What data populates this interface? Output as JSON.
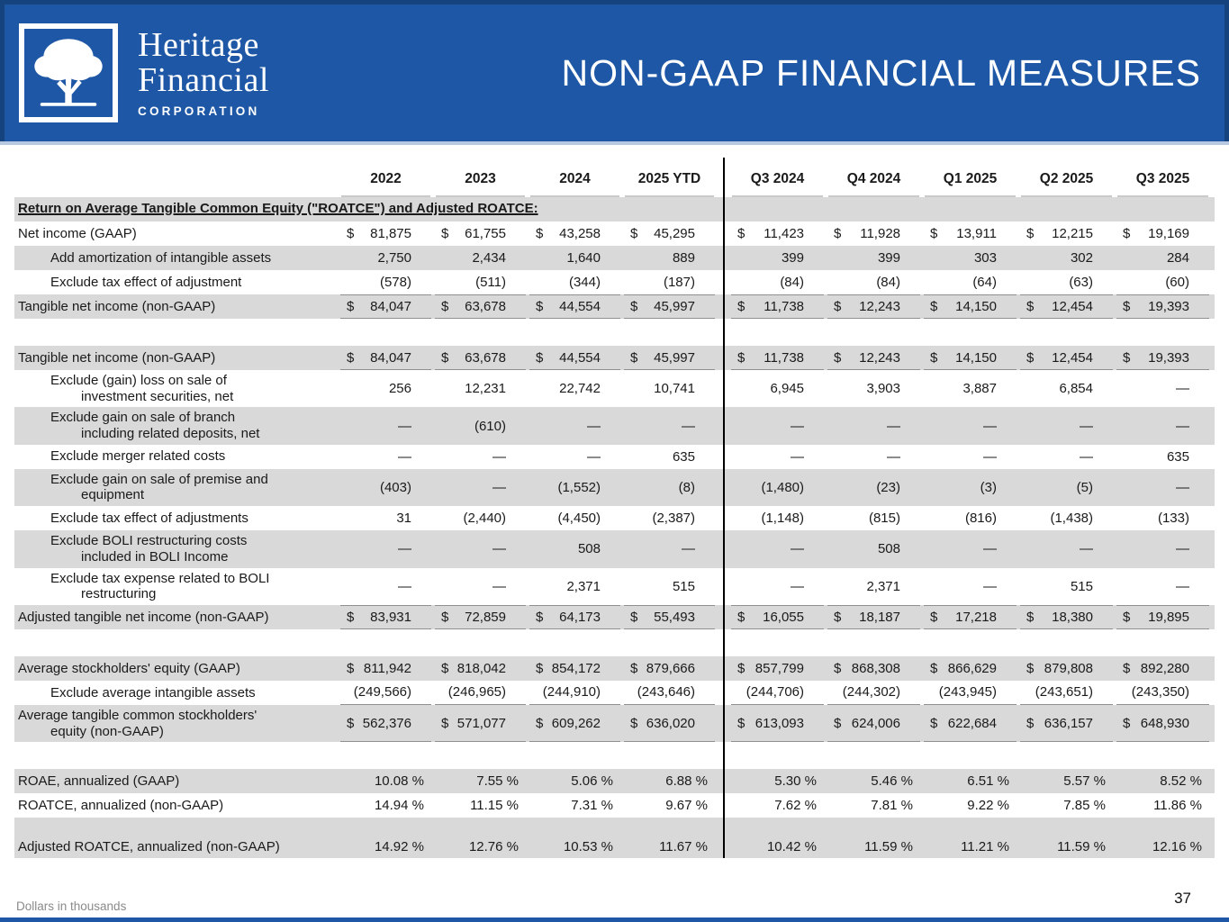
{
  "header": {
    "logo_line1": "Heritage",
    "logo_line2": "Financial",
    "logo_line3": "CORPORATION",
    "logo_icon": "tree-icon",
    "title": "NON-GAAP FINANCIAL MEASURES"
  },
  "colors": {
    "banner_blue": "#1d57a5",
    "banner_border_blue": "#14437e",
    "row_shade_gray": "#d9d9d9",
    "rule_gray": "#8f8f8f"
  },
  "table": {
    "columns": [
      "2022",
      "2023",
      "2024",
      "2025 YTD",
      "Q3 2024",
      "Q4 2024",
      "Q1 2025",
      "Q2 2025",
      "Q3 2025"
    ],
    "rows": [
      {
        "type": "section",
        "shaded": true,
        "label": "Return on Average Tangible Common Equity (\"ROATCE\") and Adjusted ROATCE:"
      },
      {
        "type": "data",
        "label": "Net income (GAAP)",
        "indent": 0,
        "dollar": true,
        "values": [
          "81,875",
          "61,755",
          "43,258",
          "45,295",
          "11,423",
          "11,928",
          "13,911",
          "12,215",
          "19,169"
        ]
      },
      {
        "type": "data",
        "label": "Add amortization of intangible assets",
        "indent": 1,
        "shaded": true,
        "values": [
          "2,750",
          "2,434",
          "1,640",
          "889",
          "399",
          "399",
          "303",
          "302",
          "284"
        ]
      },
      {
        "type": "data",
        "label": "Exclude tax effect of adjustment",
        "indent": 1,
        "values": [
          "(578)",
          "(511)",
          "(344)",
          "(187)",
          "(84)",
          "(84)",
          "(64)",
          "(63)",
          "(60)"
        ]
      },
      {
        "type": "data",
        "label": "Tangible net income (non-GAAP)",
        "indent": 0,
        "shaded": true,
        "dollar": true,
        "rule": "both",
        "values": [
          "84,047",
          "63,678",
          "44,554",
          "45,997",
          "11,738",
          "12,243",
          "14,150",
          "12,454",
          "19,393"
        ]
      },
      {
        "type": "spacer"
      },
      {
        "type": "data",
        "label": "Tangible net income (non-GAAP)",
        "indent": 0,
        "shaded": true,
        "dollar": true,
        "rule": "bottom",
        "values": [
          "84,047",
          "63,678",
          "44,554",
          "45,997",
          "11,738",
          "12,243",
          "14,150",
          "12,454",
          "19,393"
        ]
      },
      {
        "type": "data",
        "label": "Exclude (gain) loss on sale of",
        "label2": "investment securities, net",
        "indent": 1,
        "values": [
          "256",
          "12,231",
          "22,742",
          "10,741",
          "6,945",
          "3,903",
          "3,887",
          "6,854",
          "—"
        ]
      },
      {
        "type": "data",
        "label": "Exclude gain on sale of branch",
        "label2": "including related deposits, net",
        "indent": 1,
        "shaded": true,
        "values": [
          "—",
          "(610)",
          "—",
          "—",
          "—",
          "—",
          "—",
          "—",
          "—"
        ]
      },
      {
        "type": "data",
        "label": "Exclude merger related costs",
        "indent": 1,
        "values": [
          "—",
          "—",
          "—",
          "635",
          "—",
          "—",
          "—",
          "—",
          "635"
        ]
      },
      {
        "type": "data",
        "label": "Exclude gain on sale of premise and",
        "label2": "equipment",
        "indent": 1,
        "shaded": true,
        "values": [
          "(403)",
          "—",
          "(1,552)",
          "(8)",
          "(1,480)",
          "(23)",
          "(3)",
          "(5)",
          "—"
        ]
      },
      {
        "type": "data",
        "label": "Exclude tax effect of adjustments",
        "indent": 1,
        "values": [
          "31",
          "(2,440)",
          "(4,450)",
          "(2,387)",
          "(1,148)",
          "(815)",
          "(816)",
          "(1,438)",
          "(133)"
        ]
      },
      {
        "type": "data",
        "label": "Exclude BOLI restructuring costs",
        "label2": "included in BOLI Income",
        "indent": 1,
        "shaded": true,
        "values": [
          "—",
          "—",
          "508",
          "—",
          "—",
          "508",
          "—",
          "—",
          "—"
        ]
      },
      {
        "type": "data",
        "label": "Exclude tax expense related to BOLI",
        "label2": "restructuring",
        "indent": 1,
        "values": [
          "—",
          "—",
          "2,371",
          "515",
          "—",
          "2,371",
          "—",
          "515",
          "—"
        ]
      },
      {
        "type": "data",
        "label": "Adjusted tangible net income (non-GAAP)",
        "indent": 0,
        "shaded": true,
        "dollar": true,
        "rule": "both",
        "values": [
          "83,931",
          "72,859",
          "64,173",
          "55,493",
          "16,055",
          "18,187",
          "17,218",
          "18,380",
          "19,895"
        ]
      },
      {
        "type": "spacer"
      },
      {
        "type": "data",
        "label": "Average stockholders' equity (GAAP)",
        "indent": 0,
        "shaded": true,
        "dollar": true,
        "values": [
          "811,942",
          "818,042",
          "854,172",
          "879,666",
          "857,799",
          "868,308",
          "866,629",
          "879,808",
          "892,280"
        ]
      },
      {
        "type": "data",
        "label": "Exclude average intangible assets",
        "indent": 1,
        "rule": "bottom",
        "values": [
          "(249,566)",
          "(246,965)",
          "(244,910)",
          "(243,646)",
          "(244,706)",
          "(244,302)",
          "(243,945)",
          "(243,651)",
          "(243,350)"
        ]
      },
      {
        "type": "data",
        "label": "Average tangible common stockholders'",
        "label2": "equity (non-GAAP)",
        "indent": 0,
        "shaded": true,
        "dollar": true,
        "rule": "bottom",
        "values": [
          "562,376",
          "571,077",
          "609,262",
          "636,020",
          "613,093",
          "624,006",
          "622,684",
          "636,157",
          "648,930"
        ]
      },
      {
        "type": "spacer"
      },
      {
        "type": "data",
        "label": "ROAE, annualized (GAAP)",
        "indent": 0,
        "shaded": true,
        "percent": true,
        "values": [
          "10.08 %",
          "7.55 %",
          "5.06 %",
          "6.88 %",
          "5.30 %",
          "5.46 %",
          "6.51 %",
          "5.57 %",
          "8.52 %"
        ]
      },
      {
        "type": "data",
        "label": "ROATCE, annualized (non-GAAP)",
        "indent": 0,
        "percent": true,
        "values": [
          "14.94 %",
          "11.15 %",
          "7.31 %",
          "9.67 %",
          "7.62 %",
          "7.81 %",
          "9.22 %",
          "7.85 %",
          "11.86 %"
        ]
      },
      {
        "type": "data",
        "label": "Adjusted ROATCE, annualized (non-GAAP)",
        "indent": 0,
        "shaded": true,
        "percent": true,
        "tall": true,
        "values": [
          "14.92 %",
          "12.76 %",
          "10.53 %",
          "11.67 %",
          "10.42 %",
          "11.59 %",
          "11.21 %",
          "11.59 %",
          "12.16 %"
        ]
      }
    ]
  },
  "footer": {
    "note": "Dollars in thousands",
    "page": "37"
  }
}
